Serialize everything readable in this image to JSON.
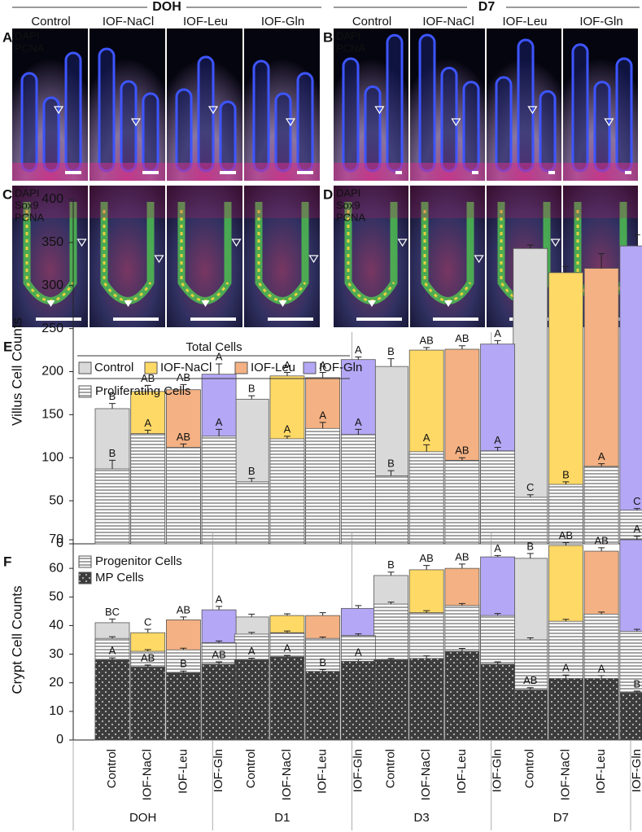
{
  "figure": {
    "timepoints": [
      {
        "title": "DOH",
        "columns": [
          "Control",
          "IOF-NaCl",
          "IOF-Leu",
          "IOF-Gln"
        ]
      },
      {
        "title": "D7",
        "columns": [
          "Control",
          "IOF-NaCl",
          "IOF-Leu",
          "IOF-Gln"
        ]
      }
    ],
    "panels": [
      {
        "label": "A",
        "channels": [
          {
            "name": "DAPI",
            "color": "#3d5cff"
          },
          {
            "name": "PCNA",
            "color": "#ff2a2a"
          }
        ]
      },
      {
        "label": "B",
        "channels": [
          {
            "name": "DAPI",
            "color": "#3d5cff"
          },
          {
            "name": "PCNA",
            "color": "#ff2a2a"
          }
        ]
      },
      {
        "label": "C",
        "channels": [
          {
            "name": "DAPI",
            "color": "#3d5cff"
          },
          {
            "name": "Sox9",
            "color": "#35d835"
          },
          {
            "name": "PCNA",
            "color": "#ff2a2a"
          }
        ]
      },
      {
        "label": "D",
        "channels": [
          {
            "name": "DAPI",
            "color": "#3d5cff"
          },
          {
            "name": "Sox9",
            "color": "#35d835"
          },
          {
            "name": "PCNA",
            "color": "#ff2a2a"
          }
        ]
      }
    ]
  },
  "chart_data": [
    {
      "type": "bar",
      "label": "E",
      "ylabel": "Villus Cell Counts",
      "legend_title": "Total Cells",
      "ylim": [
        0,
        400
      ],
      "yticks": [
        0,
        50,
        100,
        150,
        200,
        250,
        300,
        350,
        400
      ],
      "series": [
        {
          "name": "Control",
          "color": "#d9d9d9",
          "values": [
            157,
            168,
            206,
            343
          ],
          "errors": [
            6,
            4,
            9,
            4
          ],
          "letters": [
            "B",
            "B",
            "B",
            null
          ]
        },
        {
          "name": "IOF-NaCl",
          "color": "#ffd966",
          "values": [
            177,
            195,
            225,
            315
          ],
          "errors": [
            7,
            4,
            3,
            7
          ],
          "letters": [
            "AB",
            "A",
            "AB",
            null
          ]
        },
        {
          "name": "IOF-Leu",
          "color": "#f4b183",
          "values": [
            179,
            193,
            226,
            320
          ],
          "errors": [
            6,
            6,
            4,
            17
          ],
          "letters": [
            "AB",
            "A",
            "AB",
            null
          ]
        },
        {
          "name": "IOF-Gln",
          "color": "#b4a7f5",
          "values": [
            197,
            214,
            232,
            346
          ],
          "errors": [
            12,
            3,
            4,
            13
          ],
          "letters": [
            "A",
            "A",
            "A",
            null
          ]
        }
      ],
      "layers": [
        {
          "name": "Proliferating Cells",
          "pattern": "hatch",
          "series": [
            {
              "values": [
                87,
                72,
                79,
                54
              ],
              "errors": [
                10,
                4,
                6,
                3
              ],
              "letters": [
                "B",
                "B",
                "B",
                "C"
              ]
            },
            {
              "values": [
                128,
                122,
                107,
                69
              ],
              "errors": [
                4,
                3,
                8,
                3
              ],
              "letters": [
                "A",
                "A",
                "A",
                "B"
              ]
            },
            {
              "values": [
                112,
                134,
                97,
                90
              ],
              "errors": [
                4,
                7,
                3,
                3
              ],
              "letters": [
                "AB",
                "A",
                "AB",
                "A"
              ]
            },
            {
              "values": [
                125,
                127,
                108,
                39
              ],
              "errors": [
                8,
                6,
                4,
                2
              ],
              "letters": [
                "A",
                "A",
                "A",
                "C"
              ]
            }
          ]
        }
      ]
    },
    {
      "type": "bar",
      "label": "F",
      "ylabel": "Crypt Cell Counts",
      "ylim": [
        0,
        70
      ],
      "yticks": [
        0,
        10,
        20,
        30,
        40,
        50,
        60,
        70
      ],
      "groups": [
        "DOH",
        "D1",
        "D3",
        "D7"
      ],
      "categories": [
        "Control",
        "IOF-NaCl",
        "IOF-Leu",
        "IOF-Gln"
      ],
      "series": [
        {
          "color": "#d9d9d9",
          "values": [
            41,
            43,
            57.5,
            63.5
          ],
          "errors": [
            1.3,
            1,
            1.2,
            1.7
          ],
          "letters": [
            "BC",
            null,
            "B",
            "B"
          ]
        },
        {
          "color": "#ffd966",
          "values": [
            37.5,
            43.5,
            59.5,
            68
          ],
          "errors": [
            1.2,
            0.6,
            1.5,
            1
          ],
          "letters": [
            "C",
            null,
            "AB",
            "AB"
          ]
        },
        {
          "color": "#f4b183",
          "values": [
            42,
            43.5,
            60,
            66
          ],
          "errors": [
            1,
            1,
            1.5,
            1.2
          ],
          "letters": [
            "AB",
            null,
            "AB",
            "AB"
          ]
        },
        {
          "color": "#b4a7f5",
          "values": [
            45.5,
            46,
            64,
            70
          ],
          "errors": [
            1.2,
            1,
            0.5,
            1.2
          ],
          "letters": [
            "A",
            null,
            "A",
            "A"
          ]
        }
      ],
      "layers": [
        {
          "name": "Progenitor Cells",
          "pattern": "hatch",
          "series": [
            {
              "values": [
                35.5,
                37,
                47.5,
                35
              ],
              "errors": [
                0.6,
                0.6,
                0.7,
                0.7
              ],
              "letters": [
                null,
                null,
                null,
                null
              ]
            },
            {
              "values": [
                31,
                37.5,
                44.5,
                41.5
              ],
              "errors": [
                0.6,
                0.6,
                0.7,
                0.7
              ],
              "letters": [
                null,
                null,
                null,
                null
              ]
            },
            {
              "values": [
                31.5,
                35.5,
                47,
                44
              ],
              "errors": [
                0.6,
                0.5,
                0.7,
                0.7
              ],
              "letters": [
                null,
                null,
                null,
                null
              ]
            },
            {
              "values": [
                34,
                36.5,
                43.5,
                38
              ],
              "errors": [
                0.6,
                0.6,
                0.7,
                0.7
              ],
              "letters": [
                null,
                null,
                null,
                null
              ]
            }
          ]
        },
        {
          "name": "MP Cells",
          "pattern": "dots",
          "series": [
            {
              "values": [
                28,
                28,
                28,
                17.5
              ],
              "errors": [
                0.7,
                0.6,
                0.5,
                0.8
              ],
              "letters": [
                "A",
                "A",
                null,
                "AB"
              ]
            },
            {
              "values": [
                25.5,
                29,
                28.5,
                21.5
              ],
              "errors": [
                0.7,
                0.6,
                0.9,
                1.2
              ],
              "letters": [
                "AB",
                "A",
                null,
                "A"
              ]
            },
            {
              "values": [
                23.5,
                24,
                31,
                21.5
              ],
              "errors": [
                0.6,
                0.6,
                1,
                1
              ],
              "letters": [
                "B",
                "B",
                null,
                "A"
              ]
            },
            {
              "values": [
                26.5,
                27.5,
                26.5,
                16.5
              ],
              "errors": [
                0.8,
                0.7,
                0.8,
                0.6
              ],
              "letters": [
                "AB",
                "A",
                null,
                "B"
              ]
            }
          ]
        }
      ]
    }
  ]
}
